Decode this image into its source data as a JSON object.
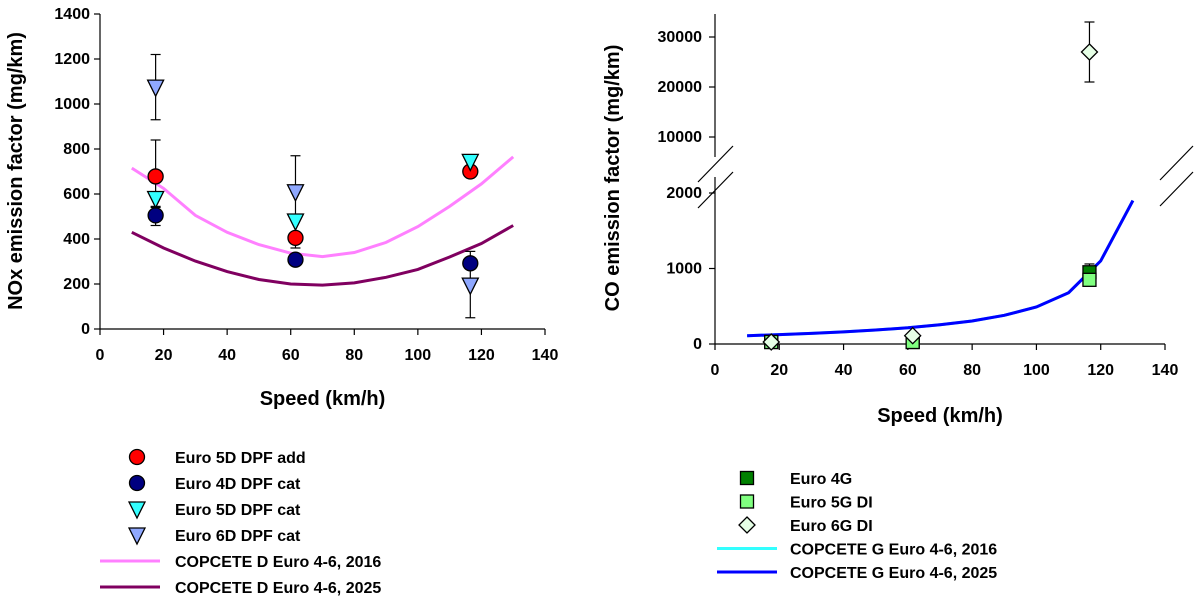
{
  "chart_data": [
    {
      "type": "scatter",
      "xlabel": "Speed (km/h)",
      "ylabel": "NOx emission factor (mg/km)",
      "xlim": [
        0,
        140
      ],
      "ylim": [
        0,
        1400
      ],
      "xticks": [
        "0",
        "20",
        "40",
        "60",
        "80",
        "100",
        "120",
        "140"
      ],
      "yticks": [
        "0",
        "200",
        "400",
        "600",
        "800",
        "1000",
        "1200",
        "1400"
      ],
      "grid": false,
      "legend": "bottom",
      "series": [
        {
          "name": "Euro 5D DPF add",
          "kind": "points",
          "marker": "circle",
          "color": "#ff0000",
          "points": [
            {
              "x": 17.5,
              "y": 678
            },
            {
              "x": 61.5,
              "y": 405
            },
            {
              "x": 116.5,
              "y": 700
            }
          ]
        },
        {
          "name": "Euro 4D DPF cat",
          "kind": "points",
          "marker": "circle",
          "color": "#000080",
          "points": [
            {
              "x": 17.5,
              "y": 505,
              "err": [
                460,
                545
              ]
            },
            {
              "x": 61.5,
              "y": 308
            },
            {
              "x": 116.5,
              "y": 292
            }
          ]
        },
        {
          "name": "Euro 5D DPF cat",
          "kind": "points",
          "marker": "triangle-down",
          "color": "#33ffff",
          "points": [
            {
              "x": 17.5,
              "y": 580,
              "err": [
                540,
                840
              ]
            },
            {
              "x": 61.5,
              "y": 480
            },
            {
              "x": 116.5,
              "y": 745,
              "err": [
                720,
                775
              ]
            }
          ]
        },
        {
          "name": "Euro 6D DPF cat",
          "kind": "points",
          "marker": "triangle-down",
          "color": "#8fa8ff",
          "points": [
            {
              "x": 17.5,
              "y": 1075,
              "err": [
                930,
                1220
              ]
            },
            {
              "x": 61.5,
              "y": 610,
              "err": [
                360,
                770
              ]
            },
            {
              "x": 116.5,
              "y": 195,
              "err": [
                50,
                345
              ]
            }
          ]
        },
        {
          "name": "COPCETE D Euro 4-6, 2016",
          "kind": "line",
          "color": "#ff80ff",
          "x": [
            10,
            20,
            30,
            40,
            50,
            60,
            70,
            80,
            90,
            100,
            110,
            120,
            130
          ],
          "y": [
            715,
            625,
            505,
            430,
            375,
            337,
            322,
            340,
            385,
            455,
            545,
            645,
            765
          ]
        },
        {
          "name": "COPCETE D Euro 4-6, 2025",
          "kind": "line",
          "color": "#800060",
          "x": [
            10,
            20,
            30,
            40,
            50,
            60,
            70,
            80,
            90,
            100,
            110,
            120,
            130
          ],
          "y": [
            430,
            360,
            302,
            255,
            220,
            200,
            195,
            205,
            230,
            265,
            320,
            380,
            460
          ]
        }
      ]
    },
    {
      "type": "scatter",
      "xlabel": "Speed (km/h)",
      "ylabel": "CO emission factor (mg/km)",
      "xlim": [
        0,
        140
      ],
      "ylim_lower": [
        0,
        2000
      ],
      "ylim_upper": [
        10000,
        30000
      ],
      "axis_break": true,
      "xticks": [
        "0",
        "20",
        "40",
        "60",
        "80",
        "100",
        "120",
        "140"
      ],
      "yticks": [
        "0",
        "1000",
        "2000",
        "10000",
        "20000",
        "30000"
      ],
      "grid": false,
      "legend": "bottom",
      "series": [
        {
          "name": "Euro 4G",
          "kind": "points",
          "marker": "square",
          "color": "#008000",
          "points": [
            {
              "x": 17.5,
              "y": 10
            },
            {
              "x": 61.5,
              "y": 10
            },
            {
              "x": 116.5,
              "y": 950,
              "err": [
                860,
                1060
              ]
            }
          ]
        },
        {
          "name": "Euro 5G DI",
          "kind": "points",
          "marker": "square",
          "color": "#80ff80",
          "points": [
            {
              "x": 17.5,
              "y": 5
            },
            {
              "x": 61.5,
              "y": 5
            },
            {
              "x": 116.5,
              "y": 850
            }
          ]
        },
        {
          "name": "Euro 6G DI",
          "kind": "points",
          "marker": "diamond",
          "color": "#e6ffe6",
          "points": [
            {
              "x": 17.5,
              "y": 20
            },
            {
              "x": 61.5,
              "y": 110
            },
            {
              "x": 116.5,
              "y": 27000,
              "err": [
                21000,
                33000
              ]
            }
          ]
        },
        {
          "name": "COPCETE G Euro 4-6, 2016",
          "kind": "line",
          "color": "#33ffff",
          "x": [
            10,
            20,
            30,
            40,
            50,
            60,
            70,
            80,
            90,
            100,
            110,
            120,
            130
          ],
          "y": [
            110,
            125,
            140,
            160,
            185,
            215,
            255,
            305,
            380,
            490,
            680,
            1100,
            1900
          ]
        },
        {
          "name": "COPCETE G Euro 4-6, 2025",
          "kind": "line",
          "color": "#0000ff",
          "x": [
            10,
            20,
            30,
            40,
            50,
            60,
            70,
            80,
            90,
            100,
            110,
            120,
            130
          ],
          "y": [
            110,
            125,
            140,
            160,
            185,
            215,
            255,
            305,
            380,
            490,
            680,
            1100,
            1900
          ]
        }
      ]
    }
  ]
}
